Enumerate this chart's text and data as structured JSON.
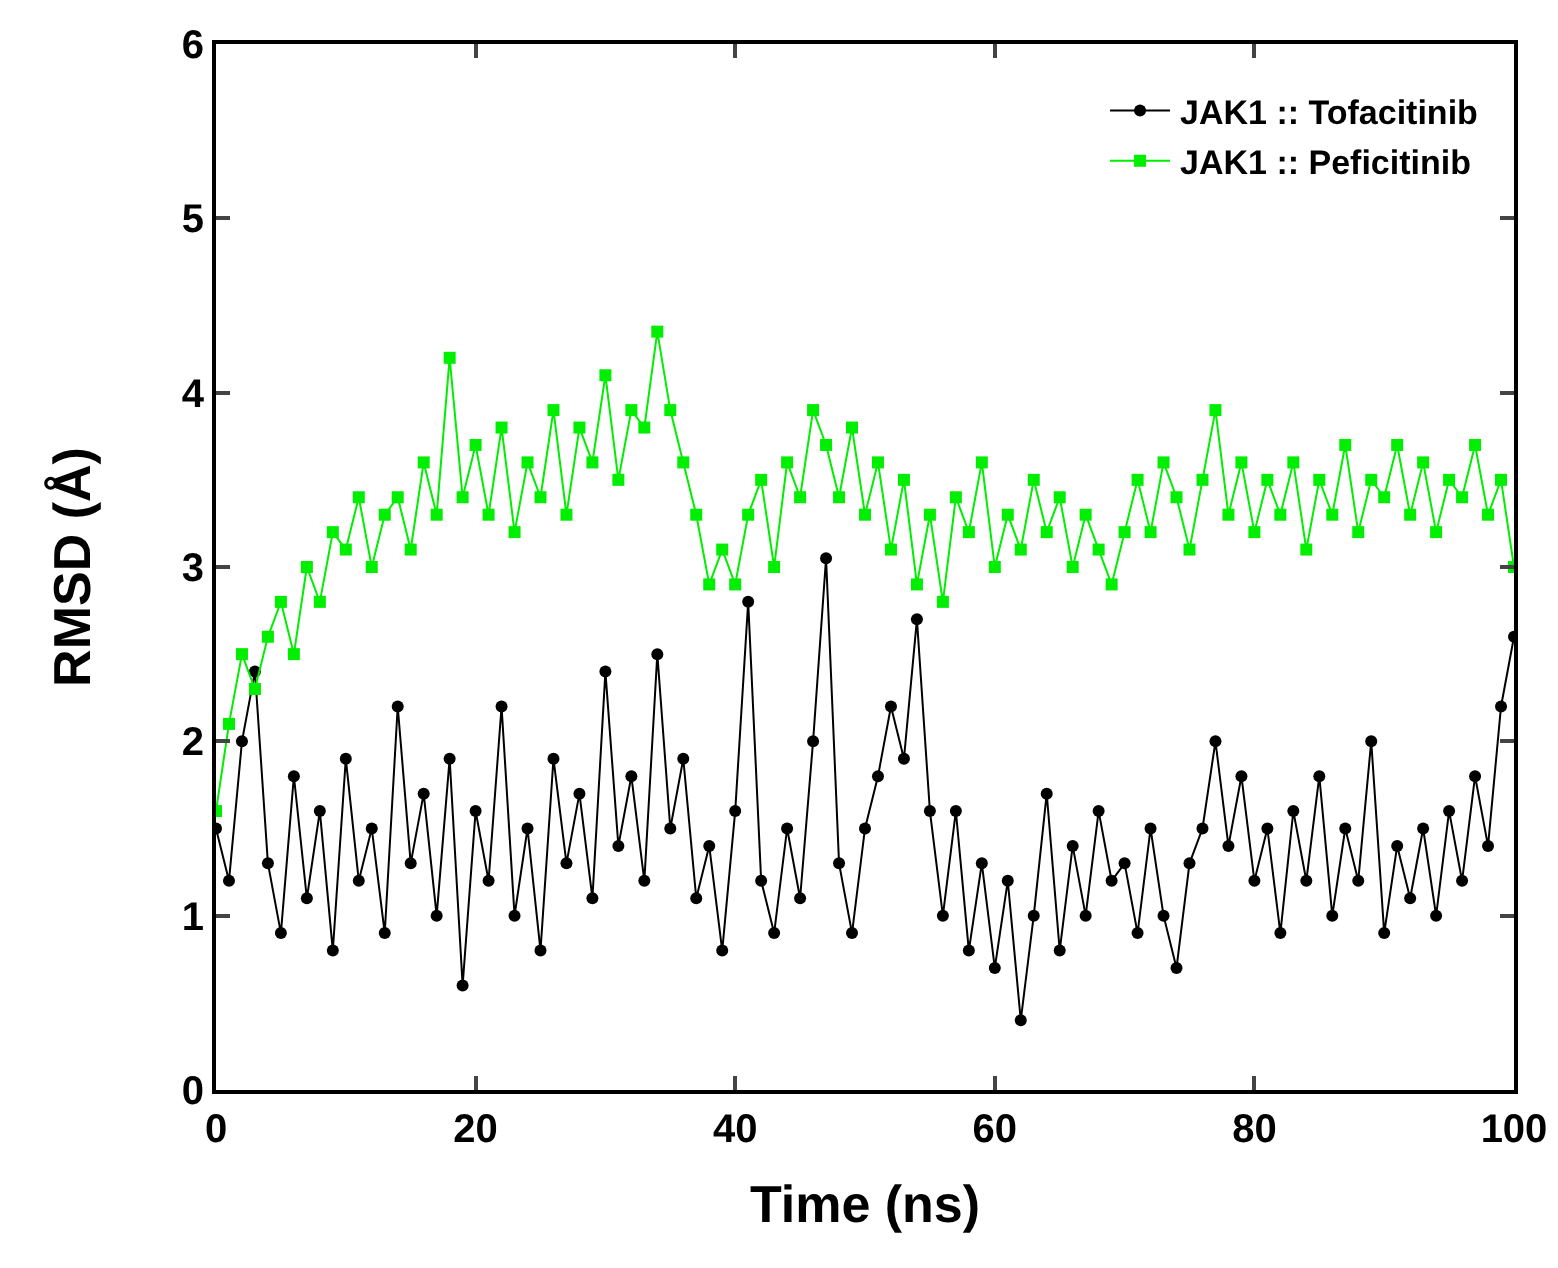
{
  "chart_data": {
    "type": "line",
    "xlabel": "Time (ns)",
    "ylabel": "RMSD (Å)",
    "xlim": [
      0,
      100
    ],
    "ylim": [
      0,
      6
    ],
    "xticks": [
      0,
      20,
      40,
      60,
      80,
      100
    ],
    "yticks": [
      0,
      1,
      2,
      3,
      4,
      5,
      6
    ],
    "grid": false,
    "legend": "top right",
    "marker": "circle",
    "line_style": "solid",
    "x": [
      0,
      1,
      2,
      3,
      4,
      5,
      6,
      7,
      8,
      9,
      10,
      11,
      12,
      13,
      14,
      15,
      16,
      17,
      18,
      19,
      20,
      21,
      22,
      23,
      24,
      25,
      26,
      27,
      28,
      29,
      30,
      31,
      32,
      33,
      34,
      35,
      36,
      37,
      38,
      39,
      40,
      41,
      42,
      43,
      44,
      45,
      46,
      47,
      48,
      49,
      50,
      51,
      52,
      53,
      54,
      55,
      56,
      57,
      58,
      59,
      60,
      61,
      62,
      63,
      64,
      65,
      66,
      67,
      68,
      69,
      70,
      71,
      72,
      73,
      74,
      75,
      76,
      77,
      78,
      79,
      80,
      81,
      82,
      83,
      84,
      85,
      86,
      87,
      88,
      89,
      90,
      91,
      92,
      93,
      94,
      95,
      96,
      97,
      98,
      99,
      100
    ],
    "series": [
      {
        "name": "JAK1 :: Tofacitinib",
        "color": "#000000",
        "values": [
          1.5,
          1.2,
          2.0,
          2.4,
          1.3,
          0.9,
          1.8,
          1.1,
          1.6,
          0.8,
          1.9,
          1.2,
          1.5,
          0.9,
          2.2,
          1.3,
          1.7,
          1.0,
          1.9,
          0.6,
          1.6,
          1.2,
          2.2,
          1.0,
          1.5,
          0.8,
          1.9,
          1.3,
          1.7,
          1.1,
          2.4,
          1.4,
          1.8,
          1.2,
          2.5,
          1.5,
          1.9,
          1.1,
          1.4,
          0.8,
          1.6,
          2.8,
          1.2,
          0.9,
          1.5,
          1.1,
          2.0,
          3.05,
          1.3,
          0.9,
          1.5,
          1.8,
          2.2,
          1.9,
          2.7,
          1.6,
          1.0,
          1.6,
          0.8,
          1.3,
          0.7,
          1.2,
          0.4,
          1.0,
          1.7,
          0.8,
          1.4,
          1.0,
          1.6,
          1.2,
          1.3,
          0.9,
          1.5,
          1.0,
          0.7,
          1.3,
          1.5,
          2.0,
          1.4,
          1.8,
          1.2,
          1.5,
          0.9,
          1.6,
          1.2,
          1.8,
          1.0,
          1.5,
          1.2,
          2.0,
          0.9,
          1.4,
          1.1,
          1.5,
          1.0,
          1.6,
          1.2,
          1.8,
          1.4,
          2.2,
          2.6
        ]
      },
      {
        "name": "JAK1 :: Peficitinib",
        "color": "#00ee00",
        "marker": "square",
        "values": [
          1.6,
          2.1,
          2.5,
          2.3,
          2.6,
          2.8,
          2.5,
          3.0,
          2.8,
          3.2,
          3.1,
          3.4,
          3.0,
          3.3,
          3.4,
          3.1,
          3.6,
          3.3,
          4.2,
          3.4,
          3.7,
          3.3,
          3.8,
          3.2,
          3.6,
          3.4,
          3.9,
          3.3,
          3.8,
          3.6,
          4.1,
          3.5,
          3.9,
          3.8,
          4.35,
          3.9,
          3.6,
          3.3,
          2.9,
          3.1,
          2.9,
          3.3,
          3.5,
          3.0,
          3.6,
          3.4,
          3.9,
          3.7,
          3.4,
          3.8,
          3.3,
          3.6,
          3.1,
          3.5,
          2.9,
          3.3,
          2.8,
          3.4,
          3.2,
          3.6,
          3.0,
          3.3,
          3.1,
          3.5,
          3.2,
          3.4,
          3.0,
          3.3,
          3.1,
          2.9,
          3.2,
          3.5,
          3.2,
          3.6,
          3.4,
          3.1,
          3.5,
          3.9,
          3.3,
          3.6,
          3.2,
          3.5,
          3.3,
          3.6,
          3.1,
          3.5,
          3.3,
          3.7,
          3.2,
          3.5,
          3.4,
          3.7,
          3.3,
          3.6,
          3.2,
          3.5,
          3.4,
          3.7,
          3.3,
          3.5,
          3.0
        ]
      }
    ]
  }
}
